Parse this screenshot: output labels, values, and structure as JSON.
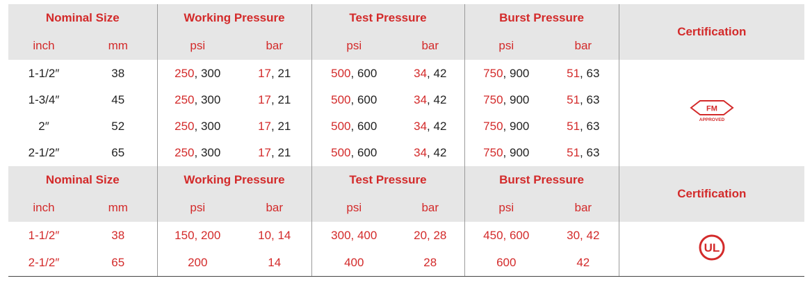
{
  "header": {
    "nominal_size": "Nominal Size",
    "working_pressure": "Working Pressure",
    "test_pressure": "Test Pressure",
    "burst_pressure": "Burst Pressure",
    "certification": "Certification",
    "inch": "inch",
    "mm": "mm",
    "psi": "psi",
    "bar": "bar"
  },
  "fm_section": {
    "rows": [
      {
        "inch": "1-1/2″",
        "mm": "38",
        "wp_psi_a": "250",
        "wp_psi_b": "300",
        "wp_bar_a": "17",
        "wp_bar_b": "21",
        "tp_psi_a": "500",
        "tp_psi_b": "600",
        "tp_bar_a": "34",
        "tp_bar_b": "42",
        "bp_psi_a": "750",
        "bp_psi_b": "900",
        "bp_bar_a": "51",
        "bp_bar_b": "63"
      },
      {
        "inch": "1-3/4″",
        "mm": "45",
        "wp_psi_a": "250",
        "wp_psi_b": "300",
        "wp_bar_a": "17",
        "wp_bar_b": "21",
        "tp_psi_a": "500",
        "tp_psi_b": "600",
        "tp_bar_a": "34",
        "tp_bar_b": "42",
        "bp_psi_a": "750",
        "bp_psi_b": "900",
        "bp_bar_a": "51",
        "bp_bar_b": "63"
      },
      {
        "inch": "2″",
        "mm": "52",
        "wp_psi_a": "250",
        "wp_psi_b": "300",
        "wp_bar_a": "17",
        "wp_bar_b": "21",
        "tp_psi_a": "500",
        "tp_psi_b": "600",
        "tp_bar_a": "34",
        "tp_bar_b": "42",
        "bp_psi_a": "750",
        "bp_psi_b": "900",
        "bp_bar_a": "51",
        "bp_bar_b": "63"
      },
      {
        "inch": "2-1/2″",
        "mm": "65",
        "wp_psi_a": "250",
        "wp_psi_b": "300",
        "wp_bar_a": "17",
        "wp_bar_b": "21",
        "tp_psi_a": "500",
        "tp_psi_b": "600",
        "tp_bar_a": "34",
        "tp_bar_b": "42",
        "bp_psi_a": "750",
        "bp_psi_b": "900",
        "bp_bar_a": "51",
        "bp_bar_b": "63"
      }
    ],
    "logo_text": "FM",
    "logo_subtext": "APPROVED"
  },
  "ul_section": {
    "rows": [
      {
        "inch": "1-1/2″",
        "mm": "38",
        "wp_psi": "150, 200",
        "wp_bar": "10, 14",
        "tp_psi": "300, 400",
        "tp_bar": "20, 28",
        "bp_psi": "450, 600",
        "bp_bar": "30, 42"
      },
      {
        "inch": "2-1/2″",
        "mm": "65",
        "wp_psi": "200",
        "wp_bar": "14",
        "tp_psi": "400",
        "tp_bar": "28",
        "bp_psi": "600",
        "bp_bar": "42"
      }
    ],
    "logo_text": "UL"
  },
  "colors": {
    "accent_red": "#d32a2a",
    "header_gray": "#e6e6e6",
    "text_dark": "#222222"
  }
}
